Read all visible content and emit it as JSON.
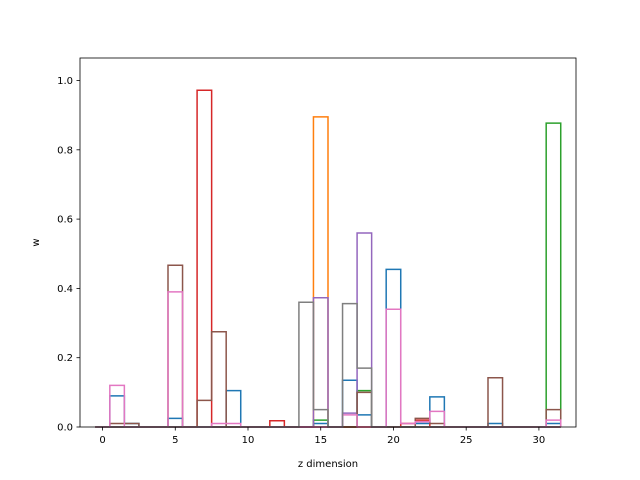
{
  "chart_data": {
    "type": "bar",
    "chart_style": "step histogram (unfilled outlines), bin width 1, bins centred on integers",
    "title": "",
    "xlabel": "z dimension",
    "ylabel": "w",
    "xlim": [
      -1.55,
      32.55
    ],
    "ylim": [
      0,
      1.065
    ],
    "xticks": [
      0,
      5,
      10,
      15,
      20,
      25,
      30
    ],
    "yticks": [
      0.0,
      0.2,
      0.4,
      0.6,
      0.8,
      1.0
    ],
    "ytick_labels": [
      "0.0",
      "0.2",
      "0.4",
      "0.6",
      "0.8",
      "1.0"
    ],
    "grid": false,
    "legend": "none",
    "x": [
      0,
      1,
      2,
      3,
      4,
      5,
      6,
      7,
      8,
      9,
      10,
      11,
      12,
      13,
      14,
      15,
      16,
      17,
      18,
      19,
      20,
      21,
      22,
      23,
      24,
      25,
      26,
      27,
      28,
      29,
      30,
      31
    ],
    "series": [
      {
        "color": "#1f77b4",
        "values": [
          0,
          0.09,
          0.01,
          0,
          0,
          0.025,
          0,
          0,
          0,
          0.105,
          0,
          0,
          0,
          0,
          0,
          0.01,
          0,
          0.135,
          0.035,
          0,
          0.455,
          0,
          0.01,
          0.087,
          0,
          0,
          0,
          0.01,
          0,
          0,
          0,
          0.01
        ]
      },
      {
        "color": "#ff7f0e",
        "values": [
          0,
          0,
          0,
          0,
          0,
          0,
          0,
          0,
          0,
          0,
          0,
          0,
          0,
          0,
          0,
          0.895,
          0,
          0,
          0,
          0,
          0,
          0,
          0,
          0,
          0,
          0,
          0,
          0,
          0,
          0,
          0,
          0
        ]
      },
      {
        "color": "#2ca02c",
        "values": [
          0,
          0,
          0,
          0,
          0,
          0,
          0,
          0,
          0,
          0,
          0,
          0,
          0,
          0,
          0,
          0.02,
          0,
          0,
          0.105,
          0,
          0,
          0,
          0,
          0,
          0,
          0,
          0,
          0,
          0,
          0,
          0,
          0.877
        ]
      },
      {
        "color": "#d62728",
        "values": [
          0,
          0,
          0,
          0,
          0,
          0,
          0,
          0.972,
          0,
          0,
          0,
          0,
          0.018,
          0,
          0,
          0,
          0,
          0,
          0,
          0,
          0,
          0.01,
          0.02,
          0,
          0,
          0,
          0,
          0,
          0,
          0,
          0,
          0
        ]
      },
      {
        "color": "#9467bd",
        "values": [
          0,
          0,
          0,
          0,
          0,
          0,
          0,
          0,
          0,
          0,
          0,
          0,
          0,
          0,
          0,
          0.373,
          0,
          0.04,
          0.56,
          0,
          0,
          0,
          0,
          0,
          0,
          0,
          0,
          0,
          0,
          0,
          0,
          0
        ]
      },
      {
        "color": "#8c564b",
        "values": [
          0,
          0.01,
          0.01,
          0,
          0,
          0.467,
          0,
          0.077,
          0.275,
          0,
          0,
          0,
          0,
          0,
          0,
          0,
          0,
          0,
          0.1,
          0,
          0,
          0,
          0.025,
          0.01,
          0,
          0,
          0,
          0.142,
          0,
          0,
          0,
          0.05
        ]
      },
      {
        "color": "#e377c2",
        "values": [
          0,
          0.12,
          0,
          0,
          0,
          0.39,
          0,
          0,
          0.01,
          0.01,
          0,
          0,
          0,
          0,
          0,
          0,
          0,
          0.035,
          0,
          0,
          0.34,
          0.01,
          0.015,
          0.045,
          0,
          0,
          0,
          0,
          0,
          0,
          0,
          0.02
        ]
      },
      {
        "color": "#7f7f7f",
        "values": [
          0,
          0,
          0,
          0,
          0,
          0,
          0,
          0,
          0,
          0,
          0,
          0,
          0,
          0,
          0.36,
          0.05,
          0,
          0.356,
          0.17,
          0,
          0,
          0,
          0,
          0,
          0,
          0,
          0,
          0,
          0,
          0,
          0,
          0
        ]
      }
    ]
  }
}
